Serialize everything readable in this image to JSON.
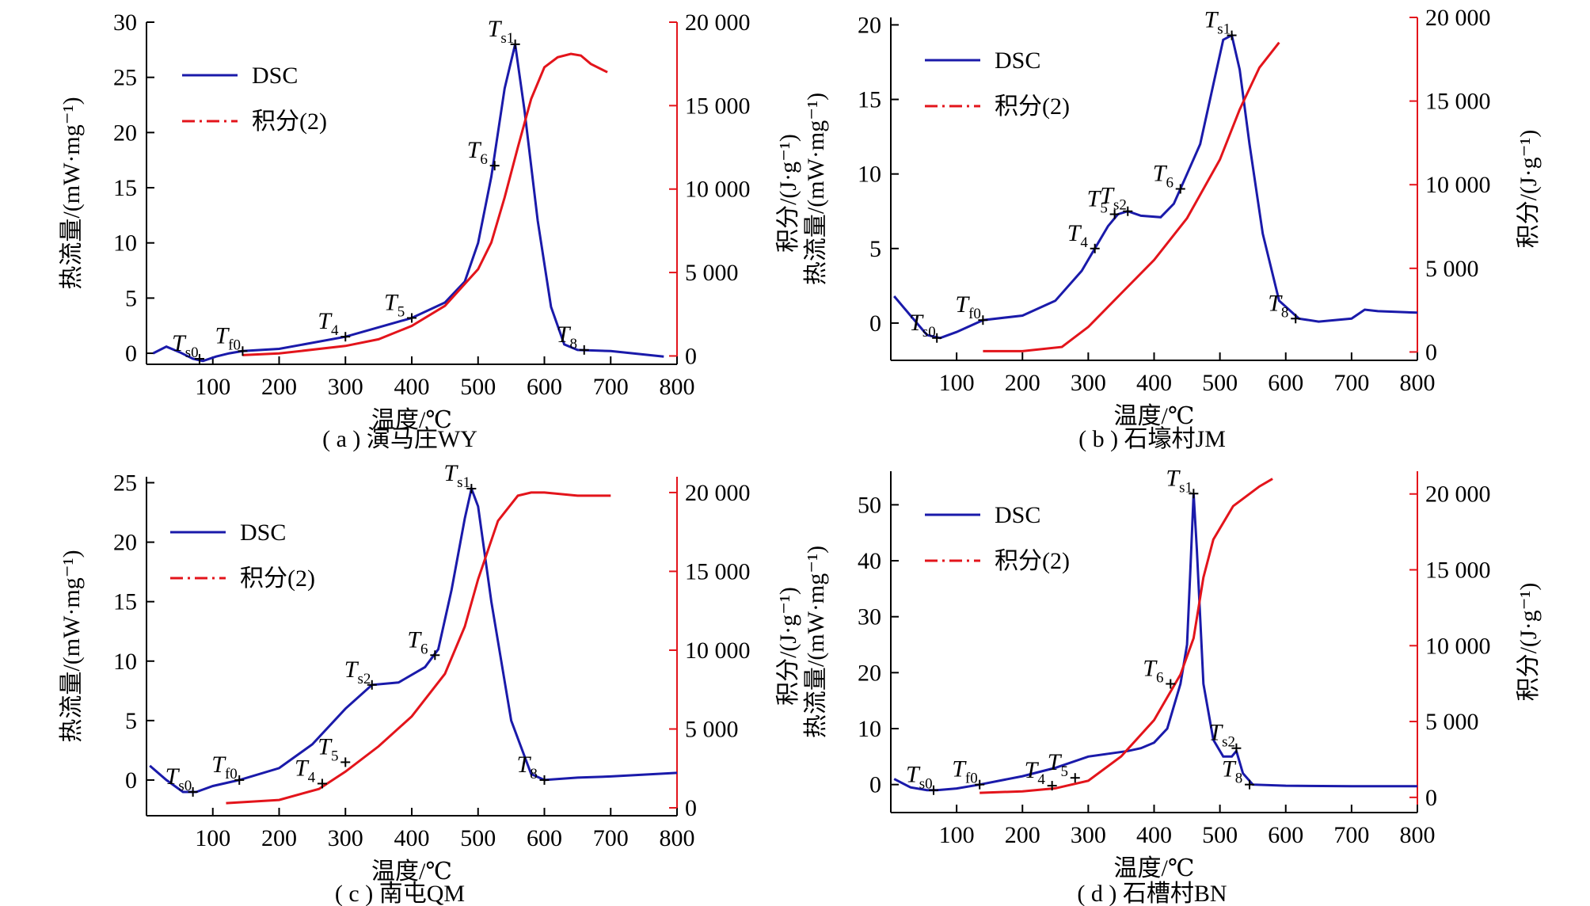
{
  "x_axis_label": "温度/℃",
  "y_left_label": "热流量/(mW·mg⁻¹)",
  "y_right_label": "积分/(J·g⁻¹)",
  "legend": {
    "dsc": "DSC",
    "integral": "积分(2)"
  },
  "chart_data": [
    {
      "type": "line",
      "caption": "( a ) 演马庄WY",
      "xlim": [
        0,
        800
      ],
      "ylim_left": [
        -1,
        30
      ],
      "ylim_right": [
        -500,
        20000
      ],
      "x_ticks": [
        "100",
        "200",
        "300",
        "400",
        "500",
        "600",
        "700",
        "800"
      ],
      "y_left_ticks": [
        "0",
        "5",
        "10",
        "15",
        "20",
        "25",
        "30"
      ],
      "y_right_ticks": [
        "0",
        "5 000",
        "10 000",
        "15 000",
        "20 000"
      ],
      "series": [
        {
          "name": "DSC",
          "axis": "left",
          "x": [
            10,
            30,
            50,
            70,
            85,
            105,
            125,
            145,
            200,
            300,
            400,
            450,
            480,
            500,
            520,
            540,
            556,
            570,
            590,
            610,
            630,
            650,
            700,
            780
          ],
          "y": [
            0,
            0.6,
            0.1,
            -0.5,
            -0.7,
            -0.3,
            0,
            0.2,
            0.4,
            1.5,
            3.2,
            4.6,
            6.5,
            10,
            16,
            24,
            28,
            22,
            12,
            4.2,
            0.8,
            0.3,
            0.2,
            -0.3
          ]
        },
        {
          "name": "积分(2)",
          "axis": "right",
          "x": [
            145,
            200,
            300,
            350,
            400,
            450,
            500,
            520,
            540,
            560,
            580,
            600,
            620,
            640,
            655,
            670,
            695
          ],
          "y": [
            50,
            150,
            600,
            1000,
            1800,
            3000,
            5200,
            6800,
            9500,
            12500,
            15400,
            17300,
            17900,
            18100,
            18000,
            17500,
            17000
          ]
        }
      ],
      "annotations": [
        {
          "label": "T",
          "sub": "s0",
          "x": 80,
          "y": -0.5
        },
        {
          "label": "T",
          "sub": "f0",
          "x": 145,
          "y": 0.2
        },
        {
          "label": "T",
          "sub": "4",
          "x": 300,
          "y": 1.5
        },
        {
          "label": "T",
          "sub": "5",
          "x": 400,
          "y": 3.2
        },
        {
          "label": "T",
          "sub": "6",
          "x": 525,
          "y": 17
        },
        {
          "label": "T",
          "sub": "s1",
          "x": 556,
          "y": 28
        },
        {
          "label": "T",
          "sub": "8",
          "x": 660,
          "y": 0.3
        }
      ]
    },
    {
      "type": "line",
      "caption": "( b ) 石壕村JM",
      "xlim": [
        0,
        800
      ],
      "ylim_left": [
        -2.5,
        20.5
      ],
      "ylim_right": [
        -500,
        20000
      ],
      "x_ticks": [
        "100",
        "200",
        "300",
        "400",
        "500",
        "600",
        "700",
        "800"
      ],
      "y_left_ticks": [
        "0",
        "5",
        "10",
        "15",
        "20"
      ],
      "y_right_ticks": [
        "0",
        "5 000",
        "10 000",
        "15 000",
        "20 000"
      ],
      "series": [
        {
          "name": "DSC",
          "axis": "left",
          "x": [
            5,
            30,
            55,
            75,
            100,
            140,
            200,
            250,
            290,
            310,
            330,
            345,
            360,
            380,
            410,
            430,
            450,
            470,
            490,
            505,
            518,
            530,
            545,
            565,
            590,
            620,
            650,
            700,
            720,
            740,
            800
          ],
          "y": [
            1.8,
            0.5,
            -0.8,
            -1,
            -0.6,
            0.2,
            0.5,
            1.5,
            3.5,
            5,
            6.5,
            7.3,
            7.5,
            7.2,
            7.1,
            8,
            10,
            12,
            16,
            19,
            19.3,
            17,
            12,
            6,
            1.5,
            0.3,
            0.1,
            0.3,
            0.9,
            0.8,
            0.7
          ]
        },
        {
          "name": "积分(2)",
          "axis": "right",
          "x": [
            140,
            200,
            260,
            300,
            350,
            400,
            450,
            500,
            530,
            560,
            590
          ],
          "y": [
            50,
            50,
            300,
            1500,
            3500,
            5500,
            8000,
            11500,
            14500,
            17000,
            18500
          ]
        }
      ],
      "annotations": [
        {
          "label": "T",
          "sub": "s0",
          "x": 70,
          "y": -1
        },
        {
          "label": "T",
          "sub": "f0",
          "x": 140,
          "y": 0.2
        },
        {
          "label": "T",
          "sub": "4",
          "x": 310,
          "y": 5
        },
        {
          "label": "T",
          "sub": "5",
          "x": 340,
          "y": 7.3
        },
        {
          "label": "T",
          "sub": "s2",
          "x": 360,
          "y": 7.5
        },
        {
          "label": "T",
          "sub": "6",
          "x": 440,
          "y": 9
        },
        {
          "label": "T",
          "sub": "s1",
          "x": 518,
          "y": 19.3
        },
        {
          "label": "T",
          "sub": "8",
          "x": 615,
          "y": 0.3
        }
      ]
    },
    {
      "type": "line",
      "caption": "( c ) 南屯QM",
      "xlim": [
        0,
        800
      ],
      "ylim_left": [
        -3,
        25.5
      ],
      "ylim_right": [
        -500,
        21000
      ],
      "x_ticks": [
        "100",
        "200",
        "300",
        "400",
        "500",
        "600",
        "700",
        "800"
      ],
      "y_left_ticks": [
        "0",
        "5",
        "10",
        "15",
        "20",
        "25"
      ],
      "y_right_ticks": [
        "0",
        "5 000",
        "10 000",
        "15 000",
        "20 000"
      ],
      "series": [
        {
          "name": "DSC",
          "axis": "left",
          "x": [
            5,
            30,
            55,
            75,
            100,
            140,
            200,
            250,
            300,
            340,
            380,
            420,
            440,
            460,
            480,
            490,
            500,
            520,
            550,
            580,
            600,
            650,
            700,
            800
          ],
          "y": [
            1.2,
            0,
            -1,
            -1,
            -0.5,
            0,
            1,
            3,
            6,
            8,
            8.2,
            9.5,
            11,
            16,
            22,
            24.5,
            23,
            15,
            5,
            0.5,
            0,
            0.2,
            0.3,
            0.6
          ]
        },
        {
          "name": "积分(2)",
          "axis": "right",
          "x": [
            120,
            200,
            260,
            300,
            350,
            400,
            450,
            480,
            500,
            530,
            560,
            580,
            600,
            650,
            700
          ],
          "y": [
            300,
            500,
            1200,
            2300,
            3900,
            5800,
            8500,
            11500,
            14500,
            18200,
            19800,
            20000,
            20000,
            19800,
            19800
          ]
        }
      ],
      "annotations": [
        {
          "label": "T",
          "sub": "s0",
          "x": 70,
          "y": -1
        },
        {
          "label": "T",
          "sub": "f0",
          "x": 140,
          "y": 0
        },
        {
          "label": "T",
          "sub": "4",
          "x": 265,
          "y": -0.3
        },
        {
          "label": "T",
          "sub": "5",
          "x": 300,
          "y": 1.5
        },
        {
          "label": "T",
          "sub": "s2",
          "x": 340,
          "y": 8
        },
        {
          "label": "T",
          "sub": "6",
          "x": 435,
          "y": 10.5
        },
        {
          "label": "T",
          "sub": "s1",
          "x": 490,
          "y": 24.5
        },
        {
          "label": "T",
          "sub": "8",
          "x": 600,
          "y": 0
        }
      ]
    },
    {
      "type": "line",
      "caption": "( d ) 石槽村BN",
      "xlim": [
        0,
        800
      ],
      "ylim_left": [
        -5,
        56
      ],
      "ylim_right": [
        -1000,
        21500
      ],
      "x_ticks": [
        "100",
        "200",
        "300",
        "400",
        "500",
        "600",
        "700",
        "800"
      ],
      "y_left_ticks": [
        "0",
        "10",
        "20",
        "30",
        "40",
        "50"
      ],
      "y_right_ticks": [
        "0",
        "5 000",
        "10 000",
        "15 000",
        "20 000"
      ],
      "series": [
        {
          "name": "DSC",
          "axis": "left",
          "x": [
            5,
            30,
            55,
            70,
            100,
            135,
            200,
            250,
            300,
            330,
            360,
            380,
            400,
            420,
            440,
            450,
            455,
            460,
            465,
            475,
            490,
            505,
            518,
            525,
            535,
            550,
            600,
            700,
            800
          ],
          "y": [
            1,
            -0.5,
            -1,
            -1,
            -0.7,
            0,
            1.5,
            3,
            5,
            5.5,
            6,
            6.5,
            7.5,
            10,
            18,
            25,
            38,
            52,
            42,
            18,
            8,
            5,
            5,
            6,
            2,
            0,
            -0.2,
            -0.3,
            -0.3
          ]
        },
        {
          "name": "积分(2)",
          "axis": "right",
          "x": [
            135,
            200,
            250,
            300,
            350,
            400,
            440,
            460,
            475,
            490,
            520,
            560,
            580
          ],
          "y": [
            300,
            400,
            600,
            1100,
            2700,
            5100,
            8100,
            10500,
            14500,
            17000,
            19200,
            20500,
            21000
          ]
        }
      ],
      "annotations": [
        {
          "label": "T",
          "sub": "s0",
          "x": 65,
          "y": -1
        },
        {
          "label": "T",
          "sub": "f0",
          "x": 135,
          "y": 0
        },
        {
          "label": "T",
          "sub": "4",
          "x": 245,
          "y": -0.2
        },
        {
          "label": "T",
          "sub": "5",
          "x": 280,
          "y": 1.2
        },
        {
          "label": "T",
          "sub": "6",
          "x": 425,
          "y": 18
        },
        {
          "label": "T",
          "sub": "s1",
          "x": 460,
          "y": 52
        },
        {
          "label": "T",
          "sub": "s2",
          "x": 525,
          "y": 6.5
        },
        {
          "label": "T",
          "sub": "8",
          "x": 545,
          "y": 0
        }
      ]
    }
  ]
}
